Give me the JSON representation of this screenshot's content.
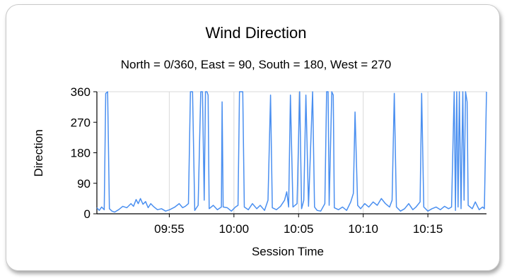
{
  "chart_data": {
    "type": "line",
    "title": "Wind Direction",
    "subtitle": "North = 0/360, East = 90, South = 180, West = 270",
    "xlabel": "Session Time",
    "ylabel": "Direction",
    "xlim": [
      "09:49:24",
      "10:19:32"
    ],
    "ylim": [
      0,
      360
    ],
    "y_ticks": [
      0,
      90,
      180,
      270,
      360
    ],
    "x_ticks": [
      "09:55",
      "10:00",
      "10:05",
      "10:10",
      "10:15"
    ],
    "grid": true,
    "color": "#4a8ff0",
    "series": [
      {
        "values": [
          [
            "09:49:24",
            18
          ],
          [
            "09:49:35",
            10
          ],
          [
            "09:49:46",
            20
          ],
          [
            "09:49:58",
            12
          ],
          [
            "09:50:05",
            355
          ],
          [
            "09:50:14",
            360
          ],
          [
            "09:50:22",
            15
          ],
          [
            "09:50:34",
            8
          ],
          [
            "09:50:46",
            5
          ],
          [
            "09:51:05",
            12
          ],
          [
            "09:51:24",
            22
          ],
          [
            "09:51:43",
            18
          ],
          [
            "09:52:02",
            30
          ],
          [
            "09:52:14",
            22
          ],
          [
            "09:52:26",
            42
          ],
          [
            "09:52:36",
            30
          ],
          [
            "09:52:46",
            45
          ],
          [
            "09:52:58",
            28
          ],
          [
            "09:53:10",
            36
          ],
          [
            "09:53:22",
            18
          ],
          [
            "09:53:34",
            30
          ],
          [
            "09:53:46",
            22
          ],
          [
            "09:54:05",
            12
          ],
          [
            "09:54:24",
            15
          ],
          [
            "09:54:43",
            8
          ],
          [
            "09:55:02",
            12
          ],
          [
            "09:55:26",
            20
          ],
          [
            "09:55:46",
            30
          ],
          [
            "09:56:02",
            18
          ],
          [
            "09:56:14",
            22
          ],
          [
            "09:56:29",
            30
          ],
          [
            "09:56:38",
            360
          ],
          [
            "09:56:48",
            360
          ],
          [
            "09:56:58",
            10
          ],
          [
            "09:57:14",
            25
          ],
          [
            "09:57:26",
            360
          ],
          [
            "09:57:34",
            360
          ],
          [
            "09:57:42",
            40
          ],
          [
            "09:57:48",
            360
          ],
          [
            "09:57:55",
            360
          ],
          [
            "09:58:00",
            350
          ],
          [
            "09:58:05",
            15
          ],
          [
            "09:58:24",
            25
          ],
          [
            "09:58:43",
            12
          ],
          [
            "09:59:02",
            20
          ],
          [
            "09:59:05",
            330
          ],
          [
            "09:59:10",
            20
          ],
          [
            "09:59:29",
            18
          ],
          [
            "09:59:48",
            8
          ],
          [
            "10:00:07",
            20
          ],
          [
            "10:00:19",
            25
          ],
          [
            "10:00:26",
            360
          ],
          [
            "10:00:34",
            360
          ],
          [
            "10:00:41",
            360
          ],
          [
            "10:00:48",
            20
          ],
          [
            "10:01:07",
            12
          ],
          [
            "10:01:26",
            30
          ],
          [
            "10:01:46",
            15
          ],
          [
            "10:02:02",
            25
          ],
          [
            "10:02:22",
            10
          ],
          [
            "10:02:38",
            40
          ],
          [
            "10:02:50",
            350
          ],
          [
            "10:02:58",
            18
          ],
          [
            "10:03:17",
            12
          ],
          [
            "10:03:36",
            22
          ],
          [
            "10:03:55",
            40
          ],
          [
            "10:04:05",
            65
          ],
          [
            "10:04:14",
            20
          ],
          [
            "10:04:22",
            350
          ],
          [
            "10:04:34",
            20
          ],
          [
            "10:04:53",
            30
          ],
          [
            "10:05:05",
            360
          ],
          [
            "10:05:14",
            15
          ],
          [
            "10:05:24",
            40
          ],
          [
            "10:05:34",
            350
          ],
          [
            "10:05:46",
            22
          ],
          [
            "10:06:05",
            360
          ],
          [
            "10:06:14",
            20
          ],
          [
            "10:06:26",
            10
          ],
          [
            "10:06:43",
            8
          ],
          [
            "10:07:02",
            30
          ],
          [
            "10:07:10",
            360
          ],
          [
            "10:07:17",
            360
          ],
          [
            "10:07:22",
            25
          ],
          [
            "10:07:34",
            360
          ],
          [
            "10:07:41",
            350
          ],
          [
            "10:07:46",
            18
          ],
          [
            "10:08:05",
            12
          ],
          [
            "10:08:24",
            20
          ],
          [
            "10:08:43",
            10
          ],
          [
            "10:09:02",
            35
          ],
          [
            "10:09:14",
            60
          ],
          [
            "10:09:22",
            300
          ],
          [
            "10:09:34",
            25
          ],
          [
            "10:09:48",
            15
          ],
          [
            "10:10:07",
            30
          ],
          [
            "10:10:26",
            20
          ],
          [
            "10:10:46",
            35
          ],
          [
            "10:11:05",
            25
          ],
          [
            "10:11:24",
            45
          ],
          [
            "10:11:43",
            30
          ],
          [
            "10:12:02",
            20
          ],
          [
            "10:12:14",
            40
          ],
          [
            "10:12:24",
            355
          ],
          [
            "10:12:34",
            20
          ],
          [
            "10:12:53",
            8
          ],
          [
            "10:13:12",
            15
          ],
          [
            "10:13:31",
            30
          ],
          [
            "10:13:50",
            12
          ],
          [
            "10:14:05",
            20
          ],
          [
            "10:14:24",
            35
          ],
          [
            "10:14:31",
            355
          ],
          [
            "10:14:41",
            20
          ],
          [
            "10:15:00",
            8
          ],
          [
            "10:15:19",
            15
          ],
          [
            "10:15:38",
            20
          ],
          [
            "10:15:58",
            12
          ],
          [
            "10:16:17",
            22
          ],
          [
            "10:16:36",
            15
          ],
          [
            "10:16:50",
            20
          ],
          [
            "10:17:02",
            360
          ],
          [
            "10:17:08",
            10
          ],
          [
            "10:17:14",
            360
          ],
          [
            "10:17:20",
            20
          ],
          [
            "10:17:26",
            360
          ],
          [
            "10:17:34",
            15
          ],
          [
            "10:17:42",
            360
          ],
          [
            "10:17:48",
            40
          ],
          [
            "10:17:55",
            360
          ],
          [
            "10:18:02",
            330
          ],
          [
            "10:18:07",
            25
          ],
          [
            "10:18:26",
            15
          ],
          [
            "10:18:40",
            35
          ],
          [
            "10:18:58",
            12
          ],
          [
            "10:19:14",
            20
          ],
          [
            "10:19:22",
            15
          ],
          [
            "10:19:32",
            360
          ]
        ]
      }
    ]
  }
}
